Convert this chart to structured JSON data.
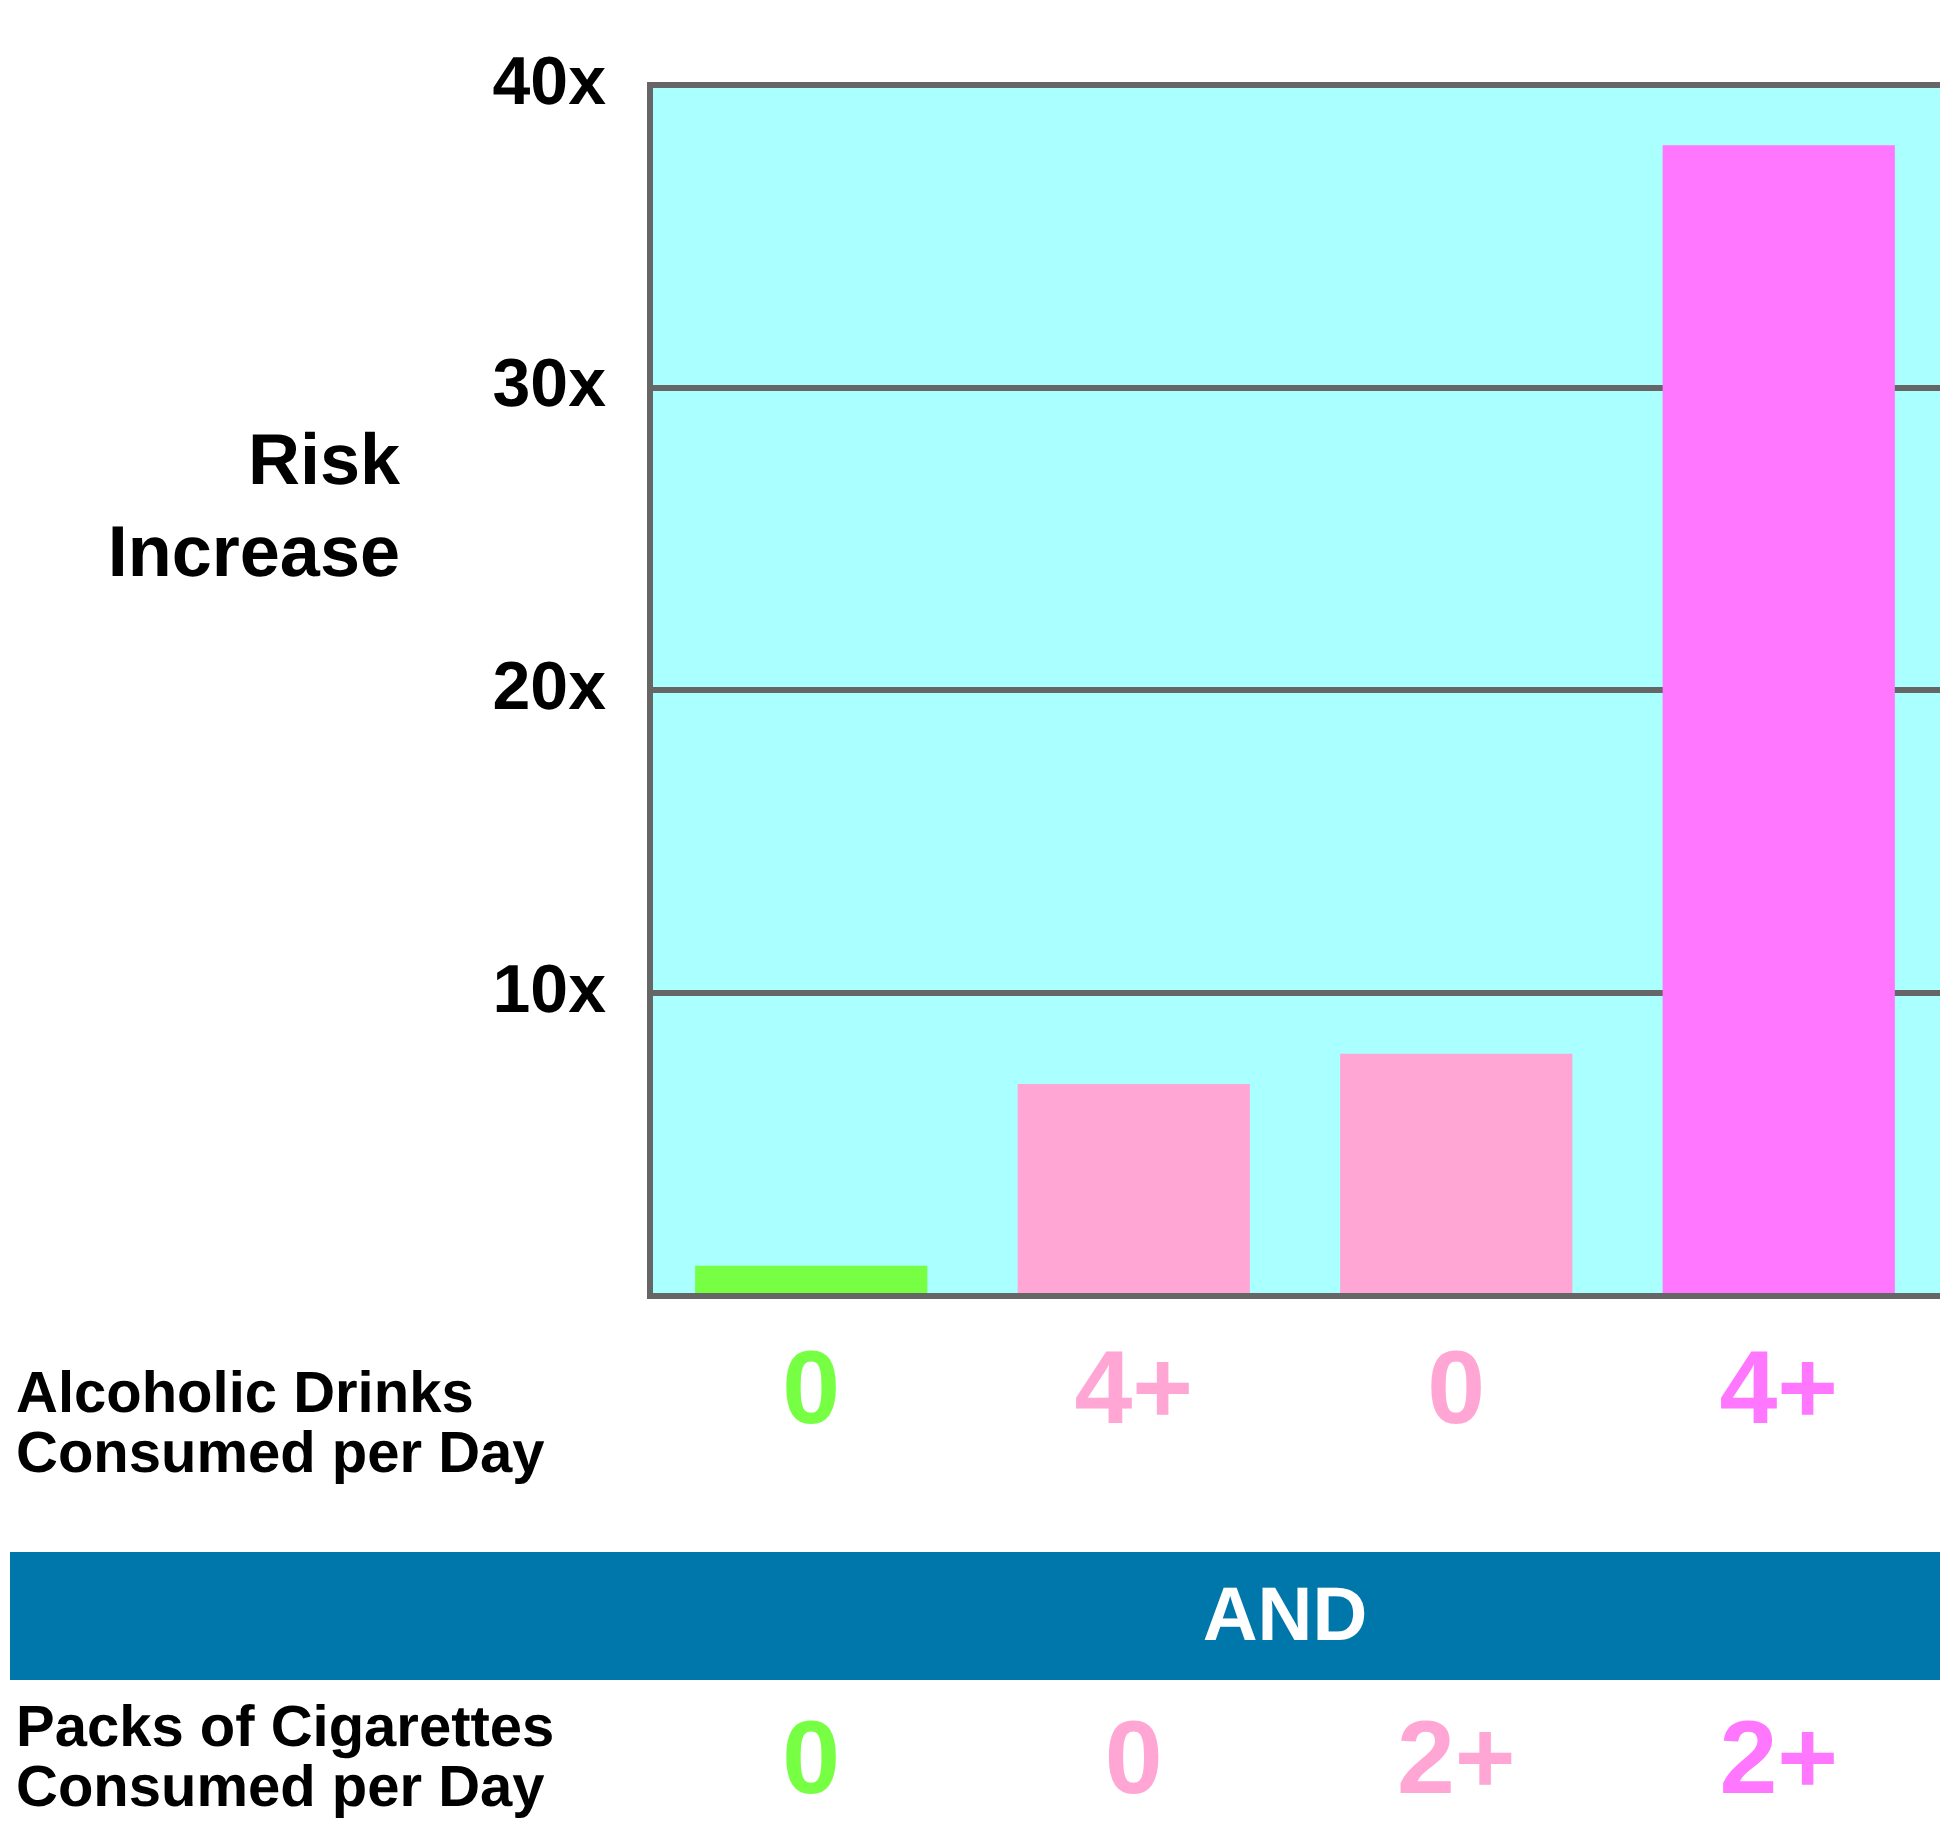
{
  "chart_data": {
    "type": "bar",
    "ylabel": "Risk Increase",
    "xlabel": "Alcoholic Drinks Consumed per Day",
    "categories": [
      "0",
      "4+",
      "0",
      "4+"
    ],
    "values": [
      1,
      7,
      8,
      38
    ],
    "colors": [
      "#77ff44",
      "#ffa6d5",
      "#ffa6d5",
      "#ff77ff"
    ],
    "ylim": [
      0,
      40
    ],
    "yticks": [
      {
        "value": 0,
        "label": null
      },
      {
        "value": 10,
        "label": "10x"
      },
      {
        "value": 20,
        "label": "20x"
      },
      {
        "value": 30,
        "label": "30x"
      },
      {
        "value": 40,
        "label": "40x"
      }
    ],
    "grid": "y",
    "legend": false,
    "annotations": [
      "AND",
      "Packs of Cigarettes Consumed per Day",
      "0",
      "0",
      "2+",
      "2+"
    ]
  }
}
